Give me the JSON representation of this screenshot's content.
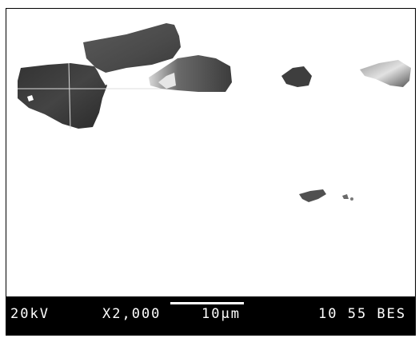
{
  "image": {
    "kind": "SEM backscattered electron micrograph",
    "background_color": "#ffffff",
    "info_bar_color": "#000000"
  },
  "info_bar": {
    "accelerating_voltage": "20kV",
    "magnification": "X2,000",
    "scale_label": "10µm",
    "image_id": "10 55 BES"
  }
}
